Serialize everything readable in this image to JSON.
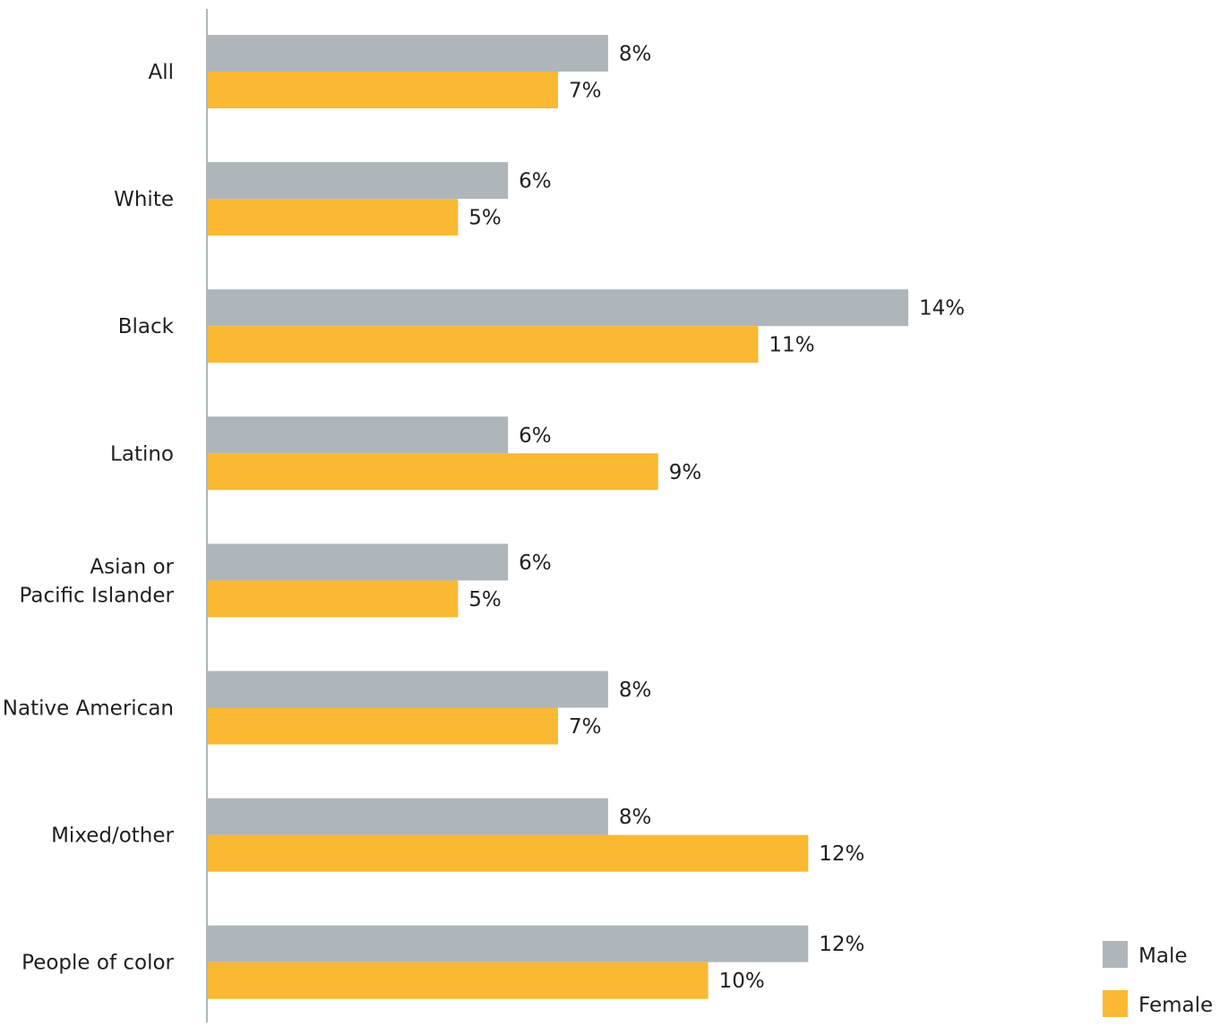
{
  "chart_data": {
    "type": "bar",
    "orientation": "horizontal",
    "categories": [
      [
        "All"
      ],
      [
        "White"
      ],
      [
        "Black"
      ],
      [
        "Latino"
      ],
      [
        "Asian or",
        "Pacific Islander"
      ],
      [
        "Native American"
      ],
      [
        "Mixed/other"
      ],
      [
        "People of color"
      ]
    ],
    "series": [
      {
        "name": "Male",
        "color": "#aeb6bb",
        "values": [
          8,
          6,
          14,
          6,
          6,
          8,
          8,
          12
        ],
        "labels": [
          "8%",
          "6%",
          "14%",
          "6%",
          "6%",
          "8%",
          "8%",
          "12%"
        ]
      },
      {
        "name": "Female",
        "color": "#fbb832",
        "values": [
          7,
          5,
          11,
          9,
          5,
          7,
          12,
          10
        ],
        "labels": [
          "7%",
          "5%",
          "11%",
          "9%",
          "5%",
          "7%",
          "12%",
          "10%"
        ]
      }
    ],
    "xlim": [
      0,
      14.8
    ],
    "grid": false,
    "legend_position": "bottom-right",
    "axis_color": "#aeb6bb"
  }
}
